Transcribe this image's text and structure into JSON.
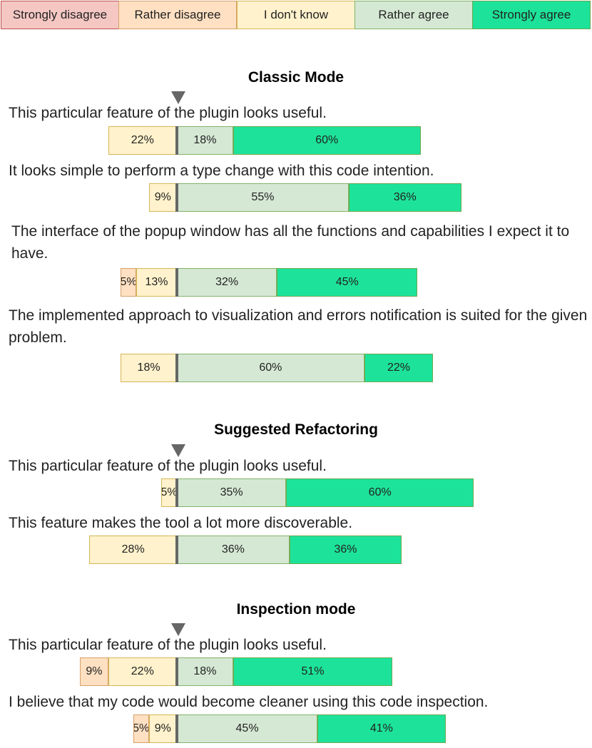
{
  "legend": {
    "items": [
      {
        "label": "Strongly disagree",
        "key": "sd"
      },
      {
        "label": "Rather disagree",
        "key": "rd"
      },
      {
        "label": "I don't know",
        "key": "dk"
      },
      {
        "label": "Rather agree",
        "key": "ra"
      },
      {
        "label": "Strongly agree",
        "key": "sa"
      }
    ]
  },
  "colors": {
    "sd": {
      "fill": "#f4c7c3",
      "border": "#c0504d"
    },
    "rd": {
      "fill": "#ffe0c2",
      "border": "#d6a06a"
    },
    "dk": {
      "fill": "#fff2cc",
      "border": "#d6b656"
    },
    "ra": {
      "fill": "#d5e8d4",
      "border": "#82b366"
    },
    "sa": {
      "fill": "#1de39a",
      "border": "#6aa84f"
    },
    "neutral_line": "#666666"
  },
  "chart_data": {
    "type": "bar",
    "orientation": "horizontal",
    "stacked": "diverging",
    "category_order": [
      "Strongly disagree",
      "Rather disagree",
      "I don't know",
      "Rather agree",
      "Strongly agree"
    ],
    "sections": [
      {
        "title": "Classic Mode",
        "questions": [
          {
            "text": "This particular feature of the plugin looks useful.",
            "segments": [
              {
                "key": "dk",
                "value": 22,
                "label": "22%"
              },
              {
                "key": "ra",
                "value": 18,
                "label": "18%"
              },
              {
                "key": "sa",
                "value": 60,
                "label": "60%"
              }
            ]
          },
          {
            "text": "It looks simple to perform a type change with this code intention.",
            "segments": [
              {
                "key": "dk",
                "value": 9,
                "label": "9%"
              },
              {
                "key": "ra",
                "value": 55,
                "label": "55%"
              },
              {
                "key": "sa",
                "value": 36,
                "label": "36%"
              }
            ]
          },
          {
            "text": "The interface of the popup window has all the functions and capabilities I expect it to have.",
            "segments": [
              {
                "key": "rd",
                "value": 5,
                "label": "5%"
              },
              {
                "key": "dk",
                "value": 13,
                "label": "13%"
              },
              {
                "key": "ra",
                "value": 32,
                "label": "32%"
              },
              {
                "key": "sa",
                "value": 45,
                "label": "45%"
              }
            ]
          },
          {
            "text": "The implemented approach to visualization and errors notification is suited for the given problem.",
            "segments": [
              {
                "key": "dk",
                "value": 18,
                "label": "18%"
              },
              {
                "key": "ra",
                "value": 60,
                "label": "60%"
              },
              {
                "key": "sa",
                "value": 22,
                "label": "22%"
              }
            ]
          }
        ]
      },
      {
        "title": "Suggested Refactoring",
        "questions": [
          {
            "text": "This particular feature of the plugin looks useful.",
            "segments": [
              {
                "key": "dk",
                "value": 5,
                "label": "5%"
              },
              {
                "key": "ra",
                "value": 35,
                "label": "35%"
              },
              {
                "key": "sa",
                "value": 60,
                "label": "60%"
              }
            ]
          },
          {
            "text": "This feature makes the tool a lot more discoverable.",
            "segments": [
              {
                "key": "dk",
                "value": 28,
                "label": "28%"
              },
              {
                "key": "ra",
                "value": 36,
                "label": "36%"
              },
              {
                "key": "sa",
                "value": 36,
                "label": "36%"
              }
            ]
          }
        ]
      },
      {
        "title": "Inspection mode",
        "questions": [
          {
            "text": "This particular feature of the plugin looks useful.",
            "segments": [
              {
                "key": "rd",
                "value": 9,
                "label": "9%"
              },
              {
                "key": "dk",
                "value": 22,
                "label": "22%"
              },
              {
                "key": "ra",
                "value": 18,
                "label": "18%"
              },
              {
                "key": "sa",
                "value": 51,
                "label": "51%"
              }
            ]
          },
          {
            "text": "I believe that my code would become cleaner using this code inspection.",
            "segments": [
              {
                "key": "rd",
                "value": 5,
                "label": "5%"
              },
              {
                "key": "dk",
                "value": 9,
                "label": "9%"
              },
              {
                "key": "ra",
                "value": 45,
                "label": "45%"
              },
              {
                "key": "sa",
                "value": 41,
                "label": "41%"
              }
            ]
          }
        ]
      }
    ]
  }
}
